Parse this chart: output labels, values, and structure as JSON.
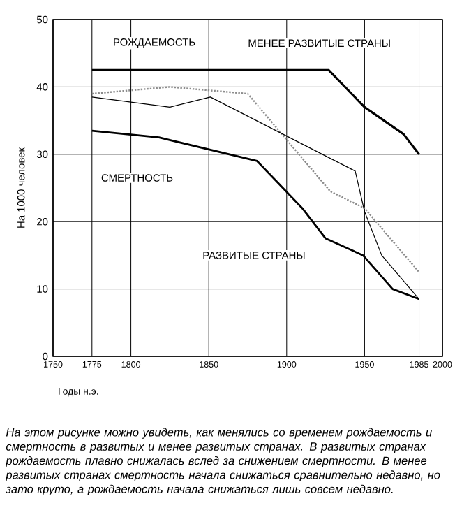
{
  "chart_data": {
    "type": "line",
    "xlabel": "Годы н.э.",
    "ylabel": "На 1000 человек",
    "xlim": [
      1750,
      2000
    ],
    "ylim": [
      0,
      50
    ],
    "xticks": [
      1750,
      1775,
      1800,
      1850,
      1900,
      1950,
      1985,
      2000
    ],
    "yticks": [
      0,
      10,
      20,
      30,
      40,
      50
    ],
    "grid": true,
    "marker": "none",
    "series": [
      {
        "color": "#000000",
        "line_style": "solid",
        "x": [
          1775,
          1927,
          1950,
          1975,
          1985
        ],
        "values": [
          42.5,
          42.5,
          37,
          33,
          30
        ]
      },
      {
        "color": "#8c8c8c",
        "line_style": "dotted",
        "x": [
          1775,
          1800,
          1825,
          1850,
          1875,
          1928,
          1950,
          1985
        ],
        "values": [
          39,
          39.5,
          40,
          39.5,
          39,
          24.5,
          22,
          12.5
        ]
      },
      {
        "color": "#000000",
        "line_style": "solid",
        "x": [
          1775,
          1825,
          1851,
          1944,
          1950,
          1961,
          1985
        ],
        "values": [
          38.5,
          37,
          38.5,
          27.5,
          21.5,
          15,
          8.5
        ]
      },
      {
        "color": "#000000",
        "line_style": "solid",
        "x": [
          1775,
          1818,
          1881,
          1910,
          1925,
          1949,
          1968,
          1985
        ],
        "values": [
          33.5,
          32.5,
          29,
          22,
          17.5,
          15,
          10,
          8.5
        ]
      }
    ],
    "annotations": [
      "РОЖДАЕМОСТЬ",
      "МЕНЕЕ РАЗВИТЫЕ СТРАНЫ",
      "СМЕРТНОСТЬ",
      "РАЗВИТЫЕ СТРАНЫ",
      "На этом рисунке можно увидеть, как менялись со временем рождаемость и смертность в развитых и менее развитых странах. В развитых странах рождаемость плавно снижалась вслед за снижением смертности. В менее развитых странах смертность начала снижаться сравнительно недавно, но зато круто, а рождаемость начала снижаться лишь совсем недавно."
    ]
  }
}
